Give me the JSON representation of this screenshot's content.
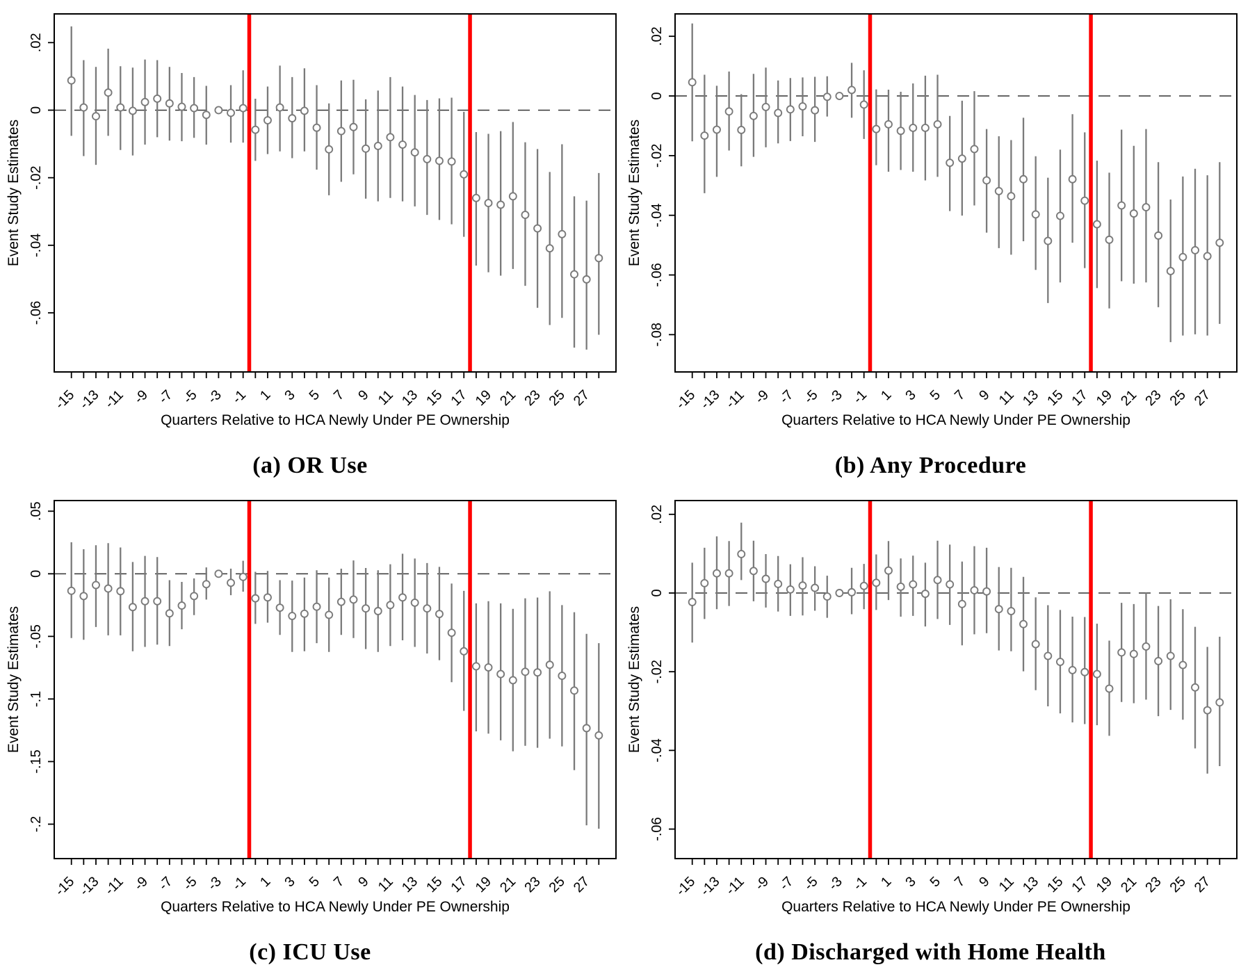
{
  "figure": {
    "xlabel": "Quarters Relative to HCA Newly Under PE Ownership",
    "ylabel": "Event Study Estimates",
    "colors": {
      "marker": "#7a7a7a",
      "ci": "#7a7a7a",
      "event_line": "#ff0000",
      "zero_line": "#333333",
      "frame": "#000000"
    },
    "reference_quarter": -3,
    "event_lines_x": [
      -0.5,
      17.5
    ]
  },
  "chart_data": [
    {
      "type": "scatter",
      "title": "(a) OR Use",
      "xlabel": "Quarters Relative to HCA Newly Under PE Ownership",
      "ylabel": "Event Study Estimates",
      "legend": "none",
      "grid": false,
      "event_lines": [
        -0.5,
        17.5
      ],
      "axes": {
        "xlim": [
          -16.4,
          29.4
        ],
        "ylim": [
          0.0285,
          -0.0775
        ],
        "xticks": [
          -15,
          -13,
          -11,
          -9,
          -7,
          -5,
          -3,
          -1,
          1,
          3,
          5,
          7,
          9,
          11,
          13,
          15,
          17,
          19,
          21,
          23,
          25,
          27
        ],
        "yticks": [
          {
            "v": 0.02,
            "label": ".02"
          },
          {
            "v": 0,
            "label": "0"
          },
          {
            "v": -0.02,
            "label": "-.02"
          },
          {
            "v": -0.04,
            "label": "-.04"
          },
          {
            "v": -0.06,
            "label": "-.06"
          }
        ]
      },
      "x": [
        -15,
        -14,
        -13,
        -12,
        -11,
        -10,
        -9,
        -8,
        -7,
        -6,
        -5,
        -4,
        -3,
        -2,
        -1,
        0,
        1,
        2,
        3,
        4,
        5,
        6,
        7,
        8,
        9,
        10,
        11,
        12,
        13,
        14,
        15,
        16,
        17,
        18,
        19,
        20,
        21,
        22,
        23,
        24,
        25,
        26,
        27,
        28
      ],
      "est": [
        0.0088,
        0.0008,
        -0.0018,
        0.0052,
        0.0008,
        -0.0002,
        0.0024,
        0.0034,
        0.002,
        0.001,
        0.0006,
        -0.0014,
        0,
        -0.0008,
        0.0006,
        -0.0058,
        -0.003,
        0.0008,
        -0.0024,
        -0.0002,
        -0.0052,
        -0.0116,
        -0.0062,
        -0.005,
        -0.0114,
        -0.0106,
        -0.008,
        -0.0102,
        -0.0125,
        -0.0145,
        -0.015,
        -0.0152,
        -0.019,
        -0.026,
        -0.0275,
        -0.028,
        -0.0255,
        -0.031,
        -0.035,
        -0.0409,
        -0.0367,
        -0.0486,
        -0.0501,
        -0.0438
      ],
      "lo": [
        -0.0076,
        -0.0136,
        -0.0162,
        -0.0076,
        -0.0118,
        -0.0134,
        -0.0102,
        -0.008,
        -0.009,
        -0.0092,
        -0.0082,
        -0.0102,
        null,
        -0.0096,
        -0.0096,
        -0.015,
        -0.013,
        -0.0122,
        -0.0142,
        -0.0122,
        -0.0176,
        -0.0252,
        -0.0212,
        -0.019,
        -0.0262,
        -0.027,
        -0.026,
        -0.027,
        -0.0285,
        -0.031,
        -0.0325,
        -0.0338,
        -0.0375,
        -0.046,
        -0.048,
        -0.049,
        -0.047,
        -0.052,
        -0.0585,
        -0.0636,
        -0.0615,
        -0.0703,
        -0.0709,
        -0.0665
      ],
      "hi": [
        0.0248,
        0.0148,
        0.0128,
        0.0182,
        0.013,
        0.0126,
        0.015,
        0.0148,
        0.0128,
        0.011,
        0.0098,
        0.0072,
        null,
        0.0074,
        0.0118,
        0.0034,
        0.007,
        0.0132,
        0.0098,
        0.0124,
        0.0074,
        0.002,
        0.0088,
        0.009,
        0.0032,
        0.0058,
        0.0098,
        0.007,
        0.0045,
        0.003,
        0.0035,
        0.0037,
        -0.0005,
        -0.0065,
        -0.007,
        -0.0062,
        -0.0035,
        -0.0095,
        -0.0115,
        -0.0183,
        -0.0101,
        -0.0255,
        -0.0268,
        -0.0186
      ]
    },
    {
      "type": "scatter",
      "title": "(b) Any Procedure",
      "xlabel": "Quarters Relative to HCA Newly Under PE Ownership",
      "ylabel": "Event Study Estimates",
      "legend": "none",
      "grid": false,
      "event_lines": [
        -0.5,
        17.5
      ],
      "axes": {
        "xlim": [
          -16.4,
          29.4
        ],
        "ylim": [
          0.0275,
          -0.0925
        ],
        "xticks": [
          -15,
          -13,
          -11,
          -9,
          -7,
          -5,
          -3,
          -1,
          1,
          3,
          5,
          7,
          9,
          11,
          13,
          15,
          17,
          19,
          21,
          23,
          25,
          27
        ],
        "yticks": [
          {
            "v": 0.02,
            "label": ".02"
          },
          {
            "v": 0,
            "label": "0"
          },
          {
            "v": -0.02,
            "label": "-.02"
          },
          {
            "v": -0.04,
            "label": "-.04"
          },
          {
            "v": -0.06,
            "label": "-.06"
          },
          {
            "v": -0.08,
            "label": "-.08"
          }
        ]
      },
      "x": [
        -15,
        -14,
        -13,
        -12,
        -11,
        -10,
        -9,
        -8,
        -7,
        -6,
        -5,
        -4,
        -3,
        -2,
        -1,
        0,
        1,
        2,
        3,
        4,
        5,
        6,
        7,
        8,
        9,
        10,
        11,
        12,
        13,
        14,
        15,
        16,
        17,
        18,
        19,
        20,
        21,
        22,
        23,
        24,
        25,
        26,
        27,
        28
      ],
      "est": [
        0.0046,
        -0.0133,
        -0.0113,
        -0.0052,
        -0.0114,
        -0.0067,
        -0.0037,
        -0.0057,
        -0.0045,
        -0.0035,
        -0.0048,
        -0.0003,
        0,
        0.002,
        -0.0029,
        -0.0111,
        -0.0095,
        -0.0117,
        -0.0107,
        -0.0107,
        -0.0095,
        -0.0224,
        -0.021,
        -0.0178,
        -0.0283,
        -0.0319,
        -0.0336,
        -0.0279,
        -0.0397,
        -0.0486,
        -0.0402,
        -0.0279,
        -0.0351,
        -0.043,
        -0.0482,
        -0.0367,
        -0.0394,
        -0.0373,
        -0.0468,
        -0.0587,
        -0.054,
        -0.0517,
        -0.0537,
        -0.0492
      ],
      "lo": [
        -0.0152,
        -0.0326,
        -0.0271,
        -0.0183,
        -0.0236,
        -0.0204,
        -0.0172,
        -0.0159,
        -0.0151,
        -0.0135,
        -0.0154,
        -0.0069,
        null,
        -0.0073,
        -0.0144,
        -0.0232,
        -0.0254,
        -0.0248,
        -0.0254,
        -0.0283,
        -0.0271,
        -0.0386,
        -0.0401,
        -0.0367,
        -0.0458,
        -0.051,
        -0.0532,
        -0.0487,
        -0.0583,
        -0.0694,
        -0.0625,
        -0.0492,
        -0.0577,
        -0.0644,
        -0.0712,
        -0.0621,
        -0.0629,
        -0.0625,
        -0.0708,
        -0.0825,
        -0.0803,
        -0.0799,
        -0.0803,
        -0.0764
      ],
      "hi": [
        0.0243,
        0.0071,
        0.0034,
        0.0082,
        0.0006,
        0.0074,
        0.0095,
        0.0052,
        0.006,
        0.0062,
        0.0064,
        0.0066,
        null,
        0.0111,
        0.0086,
        0.0022,
        0.0021,
        0.0014,
        0.0042,
        0.0068,
        0.0071,
        -0.0067,
        -0.0016,
        0.0016,
        -0.0111,
        -0.0135,
        -0.0148,
        -0.0073,
        -0.0202,
        -0.0274,
        -0.018,
        -0.0061,
        -0.0122,
        -0.0217,
        -0.0257,
        -0.0113,
        -0.0167,
        -0.0111,
        -0.0222,
        -0.0347,
        -0.027,
        -0.0244,
        -0.0266,
        -0.0222
      ]
    },
    {
      "type": "scatter",
      "title": "(c) ICU Use",
      "xlabel": "Quarters Relative to HCA Newly Under PE Ownership",
      "ylabel": "Event Study Estimates",
      "legend": "none",
      "grid": false,
      "event_lines": [
        -0.5,
        17.5
      ],
      "axes": {
        "xlim": [
          -16.4,
          29.4
        ],
        "ylim": [
          0.0585,
          -0.2275
        ],
        "xticks": [
          -15,
          -13,
          -11,
          -9,
          -7,
          -5,
          -3,
          -1,
          1,
          3,
          5,
          7,
          9,
          11,
          13,
          15,
          17,
          19,
          21,
          23,
          25,
          27
        ],
        "yticks": [
          {
            "v": 0.05,
            "label": ".05"
          },
          {
            "v": 0,
            "label": "0"
          },
          {
            "v": -0.05,
            "label": "-.05"
          },
          {
            "v": -0.1,
            "label": "-.1"
          },
          {
            "v": -0.15,
            "label": "-.15"
          },
          {
            "v": -0.2,
            "label": "-.2"
          }
        ]
      },
      "x": [
        -15,
        -14,
        -13,
        -12,
        -11,
        -10,
        -9,
        -8,
        -7,
        -6,
        -5,
        -4,
        -3,
        -2,
        -1,
        0,
        1,
        2,
        3,
        4,
        5,
        6,
        7,
        8,
        9,
        10,
        11,
        12,
        13,
        14,
        15,
        16,
        17,
        18,
        19,
        20,
        21,
        22,
        23,
        24,
        25,
        26,
        27,
        28
      ],
      "est": [
        -0.0136,
        -0.0178,
        -0.009,
        -0.0118,
        -0.0139,
        -0.0266,
        -0.0219,
        -0.0219,
        -0.0316,
        -0.0254,
        -0.0178,
        -0.0083,
        0,
        -0.0072,
        -0.0025,
        -0.0196,
        -0.0189,
        -0.0271,
        -0.0337,
        -0.0319,
        -0.0263,
        -0.0328,
        -0.0224,
        -0.0206,
        -0.0277,
        -0.0298,
        -0.025,
        -0.0189,
        -0.0231,
        -0.0277,
        -0.0321,
        -0.0471,
        -0.0619,
        -0.0739,
        -0.0748,
        -0.0801,
        -0.085,
        -0.0783,
        -0.0788,
        -0.0727,
        -0.0815,
        -0.0933,
        -0.1233,
        -0.1291
      ],
      "lo": [
        -0.0513,
        -0.0527,
        -0.0425,
        -0.0492,
        -0.0492,
        -0.0619,
        -0.0584,
        -0.0566,
        -0.0577,
        -0.0443,
        -0.033,
        -0.0206,
        null,
        -0.0171,
        -0.0143,
        -0.04,
        -0.039,
        -0.0488,
        -0.0624,
        -0.0619,
        -0.0554,
        -0.0624,
        -0.0488,
        -0.0513,
        -0.0601,
        -0.0624,
        -0.0577,
        -0.0531,
        -0.0584,
        -0.0637,
        -0.069,
        -0.0866,
        -0.1095,
        -0.1259,
        -0.1277,
        -0.133,
        -0.1418,
        -0.1374,
        -0.139,
        -0.1317,
        -0.1379,
        -0.1568,
        -0.2009,
        -0.2036
      ],
      "hi": [
        0.0252,
        0.0196,
        0.0228,
        0.0245,
        0.021,
        0.0094,
        0.0143,
        0.0134,
        -0.0051,
        -0.0065,
        -0.0037,
        0.0051,
        null,
        0.0041,
        0.0104,
        0.0016,
        0.0023,
        -0.0051,
        -0.0054,
        -0.003,
        0.0028,
        -0.003,
        0.0041,
        0.0107,
        0.0046,
        0.0028,
        0.0076,
        0.016,
        0.0122,
        0.0086,
        0.0055,
        -0.0078,
        -0.0136,
        -0.0236,
        -0.0219,
        -0.0236,
        -0.028,
        -0.0196,
        -0.019,
        -0.014,
        -0.025,
        -0.0307,
        -0.048,
        -0.0554
      ]
    },
    {
      "type": "scatter",
      "title": "(d) Discharged with Home Health",
      "xlabel": "Quarters Relative to HCA Newly Under PE Ownership",
      "ylabel": "Event Study Estimates",
      "legend": "none",
      "grid": false,
      "event_lines": [
        -0.5,
        17.5
      ],
      "axes": {
        "xlim": [
          -16.4,
          29.4
        ],
        "ylim": [
          0.0235,
          -0.0675
        ],
        "xticks": [
          -15,
          -13,
          -11,
          -9,
          -7,
          -5,
          -3,
          -1,
          1,
          3,
          5,
          7,
          9,
          11,
          13,
          15,
          17,
          19,
          21,
          23,
          25,
          27
        ],
        "yticks": [
          {
            "v": 0.02,
            "label": ".02"
          },
          {
            "v": 0,
            "label": "0"
          },
          {
            "v": -0.02,
            "label": "-.02"
          },
          {
            "v": -0.04,
            "label": "-.04"
          },
          {
            "v": -0.06,
            "label": "-.06"
          }
        ]
      },
      "x": [
        -15,
        -14,
        -13,
        -12,
        -11,
        -10,
        -9,
        -8,
        -7,
        -6,
        -5,
        -4,
        -3,
        -2,
        -1,
        0,
        1,
        2,
        3,
        4,
        5,
        6,
        7,
        8,
        9,
        10,
        11,
        12,
        13,
        14,
        15,
        16,
        17,
        18,
        19,
        20,
        21,
        22,
        23,
        24,
        25,
        26,
        27,
        28
      ],
      "est": [
        -0.0023,
        0.0025,
        0.005,
        0.005,
        0.0099,
        0.0056,
        0.0036,
        0.0023,
        0.0009,
        0.0019,
        0.0013,
        -0.0009,
        0,
        0.0002,
        0.0018,
        0.0026,
        0.0057,
        0.0016,
        0.0022,
        -0.0002,
        0.0033,
        0.0022,
        -0.0028,
        0.0007,
        0.0004,
        -0.0041,
        -0.0046,
        -0.0079,
        -0.013,
        -0.016,
        -0.0175,
        -0.0196,
        -0.0201,
        -0.0206,
        -0.0243,
        -0.0151,
        -0.0155,
        -0.0136,
        -0.0173,
        -0.016,
        -0.0183,
        -0.024,
        -0.0298,
        -0.0278
      ],
      "lo": [
        -0.0126,
        -0.0066,
        -0.0041,
        -0.0033,
        0.0033,
        -0.0021,
        -0.0037,
        -0.0047,
        -0.0058,
        -0.0057,
        -0.0045,
        -0.0063,
        null,
        -0.0054,
        -0.0041,
        -0.0043,
        -0.0018,
        -0.006,
        -0.0058,
        -0.0085,
        -0.0066,
        -0.0081,
        -0.0133,
        -0.0105,
        -0.0102,
        -0.0146,
        -0.0148,
        -0.0199,
        -0.0247,
        -0.0288,
        -0.0306,
        -0.0329,
        -0.0333,
        -0.0336,
        -0.0363,
        -0.0277,
        -0.028,
        -0.0271,
        -0.0313,
        -0.0297,
        -0.0322,
        -0.0395,
        -0.0459,
        -0.044
      ],
      "hi": [
        0.0077,
        0.0115,
        0.0144,
        0.0132,
        0.0179,
        0.0133,
        0.0099,
        0.0094,
        0.0073,
        0.0091,
        0.0068,
        0.0044,
        null,
        0.0064,
        0.0074,
        0.0098,
        0.0132,
        0.0088,
        0.0095,
        0.0077,
        0.0133,
        0.0123,
        0.008,
        0.0119,
        0.0115,
        0.0066,
        0.0064,
        0.0041,
        -0.0011,
        -0.0031,
        -0.0043,
        -0.006,
        -0.0061,
        -0.0078,
        -0.0121,
        -0.0025,
        -0.0028,
        0.0002,
        -0.0033,
        -0.0016,
        -0.0041,
        -0.0086,
        -0.0137,
        -0.0111
      ]
    }
  ]
}
